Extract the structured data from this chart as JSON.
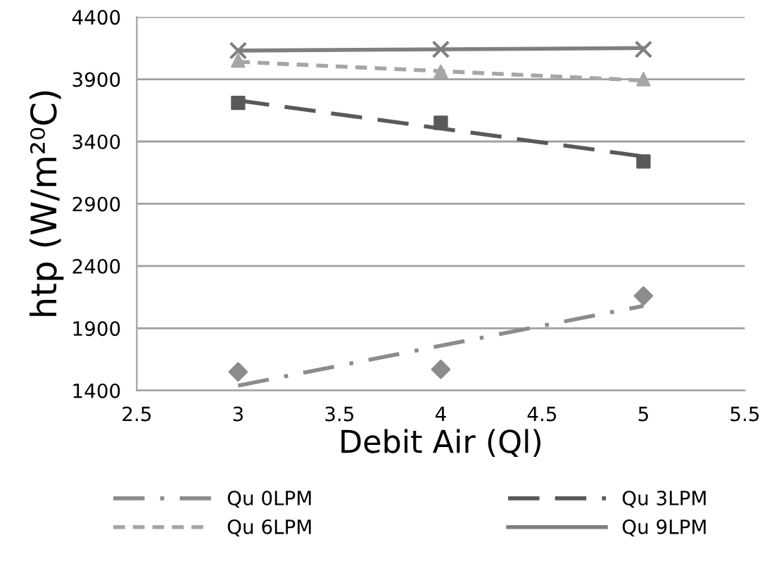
{
  "chart_data": {
    "type": "scatter",
    "xlabel": "Debit Air (Ql)",
    "ylabel": "htp (W/m²⁰C)",
    "xlim": [
      2.5,
      5.5
    ],
    "xticks": [
      2.5,
      3,
      3.5,
      4,
      4.5,
      5,
      5.5
    ],
    "ylim": [
      1400,
      4400
    ],
    "yticks": [
      1400,
      1900,
      2400,
      2900,
      3400,
      3900,
      4400
    ],
    "grid": "y",
    "legend": "bottom",
    "series": [
      {
        "marker": "diamond",
        "color": "#8c8c8c",
        "x": [
          3,
          4,
          5
        ],
        "values": [
          1550,
          1570,
          2160
        ]
      },
      {
        "marker": "square",
        "color": "#595959",
        "x": [
          3,
          4,
          5
        ],
        "values": [
          3710,
          3550,
          3240
        ]
      },
      {
        "marker": "triangle",
        "color": "#a6a6a6",
        "x": [
          3,
          4,
          5
        ],
        "values": [
          4050,
          3960,
          3900
        ]
      },
      {
        "marker": "cross",
        "color": "#7f7f7f",
        "x": [
          3,
          4,
          5
        ],
        "values": [
          4130,
          4140,
          4140
        ]
      },
      {
        "type": "line",
        "name": "Qu 0LPM",
        "line_style": "dashdot",
        "color": "#8c8c8c",
        "x": [
          3,
          5
        ],
        "values": [
          1440,
          2080
        ]
      },
      {
        "type": "line",
        "name": "Qu 3LPM",
        "line_style": "dashed",
        "color": "#595959",
        "x": [
          3,
          5
        ],
        "values": [
          3730,
          3280
        ]
      },
      {
        "type": "line",
        "name": "Qu 6LPM",
        "line_style": "dotted",
        "color": "#a6a6a6",
        "x": [
          3,
          5
        ],
        "values": [
          4040,
          3890
        ]
      },
      {
        "type": "line",
        "name": "Qu 9LPM",
        "line_style": "solid",
        "color": "#7f7f7f",
        "x": [
          3,
          5
        ],
        "values": [
          4130,
          4150
        ]
      }
    ]
  }
}
